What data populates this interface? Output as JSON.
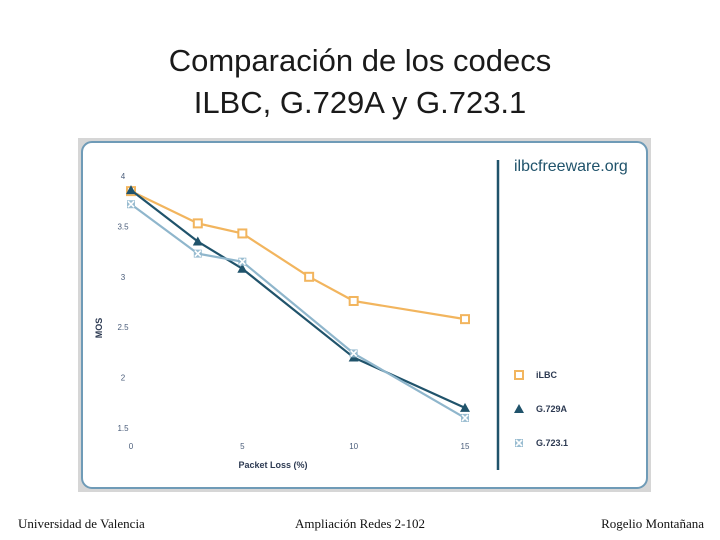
{
  "slide": {
    "title_line1": "Comparación de los codecs",
    "title_line2": "ILBC, G.729A y G.723.1"
  },
  "footer": {
    "left": "Universidad de Valencia",
    "center": "Ampliación Redes 2-102",
    "right": "Rogelio Montañana"
  },
  "watermark": "ilbcfreeware.org",
  "colors": {
    "ilbc": "#f2b55e",
    "g729a": "#20536b",
    "g7231": "#8fb6cc",
    "panel_bg": "#ffffff",
    "panel_border": "#6f9bb7",
    "frame": "#d6d6d6"
  },
  "chart_data": {
    "type": "line",
    "title": "",
    "xlabel": "Packet Loss (%)",
    "ylabel": "MOS",
    "xlim": [
      0,
      15
    ],
    "ylim": [
      1.5,
      4
    ],
    "x_ticks": [
      "0",
      "5",
      "10",
      "15"
    ],
    "y_ticks": [
      "1.5",
      "2",
      "2.5",
      "3",
      "3.5",
      "4"
    ],
    "grid": false,
    "legend_position": "right",
    "series": [
      {
        "name": "iLBC",
        "marker": "open-square",
        "x": [
          0,
          3,
          5,
          8,
          10,
          15
        ],
        "y": [
          3.85,
          3.53,
          3.43,
          3.0,
          2.76,
          2.58
        ]
      },
      {
        "name": "G.729A",
        "marker": "triangle",
        "x": [
          0,
          3,
          5,
          10,
          15
        ],
        "y": [
          3.86,
          3.35,
          3.08,
          2.2,
          1.7
        ]
      },
      {
        "name": "G.723.1",
        "marker": "x-square",
        "x": [
          0,
          3,
          5,
          10,
          15
        ],
        "y": [
          3.72,
          3.23,
          3.15,
          2.24,
          1.6
        ]
      }
    ]
  }
}
